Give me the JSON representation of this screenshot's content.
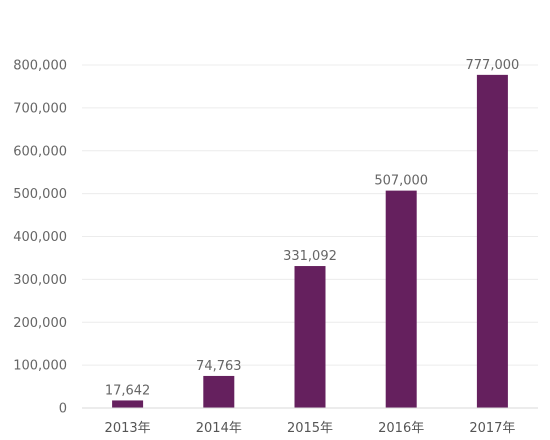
{
  "chart_data": {
    "type": "bar",
    "categories": [
      "2013年",
      "2014年",
      "2015年",
      "2016年",
      "2017年"
    ],
    "values": [
      17642,
      74763,
      331092,
      507000,
      777000
    ],
    "data_labels": [
      "17,642",
      "74,763",
      "331,092",
      "507,000",
      "777,000"
    ],
    "yticks": [
      0,
      100000,
      200000,
      300000,
      400000,
      500000,
      600000,
      700000,
      800000
    ],
    "ytick_labels": [
      "0",
      "100,000",
      "200,000",
      "300,000",
      "400,000",
      "500,000",
      "600,000",
      "700,000",
      "800,000"
    ],
    "ylim": [
      0,
      800000
    ],
    "grid": true,
    "bar_color": "#65205E"
  }
}
